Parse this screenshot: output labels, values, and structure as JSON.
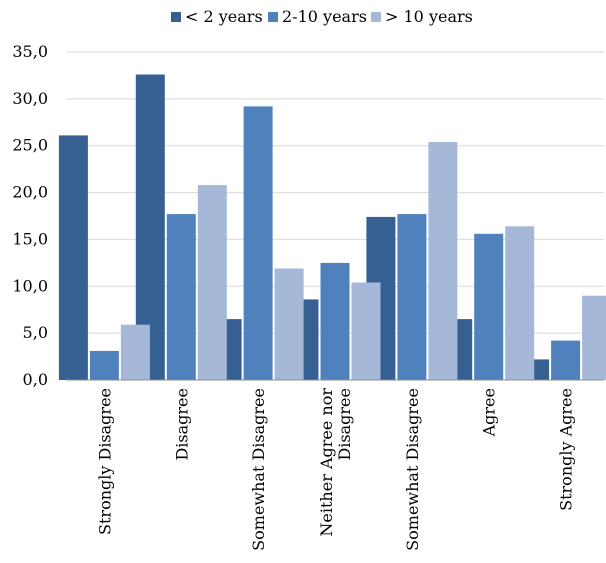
{
  "chart_data": {
    "type": "bar",
    "categories": [
      [
        "Strongly Disagree"
      ],
      [
        "Disagree"
      ],
      [
        "Somewhat Disagree"
      ],
      [
        "Neither Agree nor",
        "Disagree"
      ],
      [
        "Somewhat  Disagree"
      ],
      [
        "Agree"
      ],
      [
        "Strongly Agree"
      ]
    ],
    "series": [
      {
        "name": "< 2 years",
        "color": "#376092",
        "values": [
          26.1,
          32.6,
          6.5,
          8.6,
          17.4,
          6.5,
          2.2
        ]
      },
      {
        "name": "2-10 years",
        "color": "#4f81bd",
        "values": [
          3.1,
          17.7,
          29.2,
          12.5,
          17.7,
          15.6,
          4.2
        ]
      },
      {
        "name": "> 10 years",
        "color": "#a6b8d8",
        "values": [
          5.9,
          20.8,
          11.9,
          10.4,
          25.4,
          16.4,
          9.0
        ]
      }
    ],
    "yticks": [
      "0,0",
      "5,0",
      "10,0",
      "15,0",
      "20,0",
      "25,0",
      "30,0",
      "35,0"
    ],
    "ylim": [
      0,
      35
    ],
    "grid": true,
    "legend_position": "top"
  }
}
